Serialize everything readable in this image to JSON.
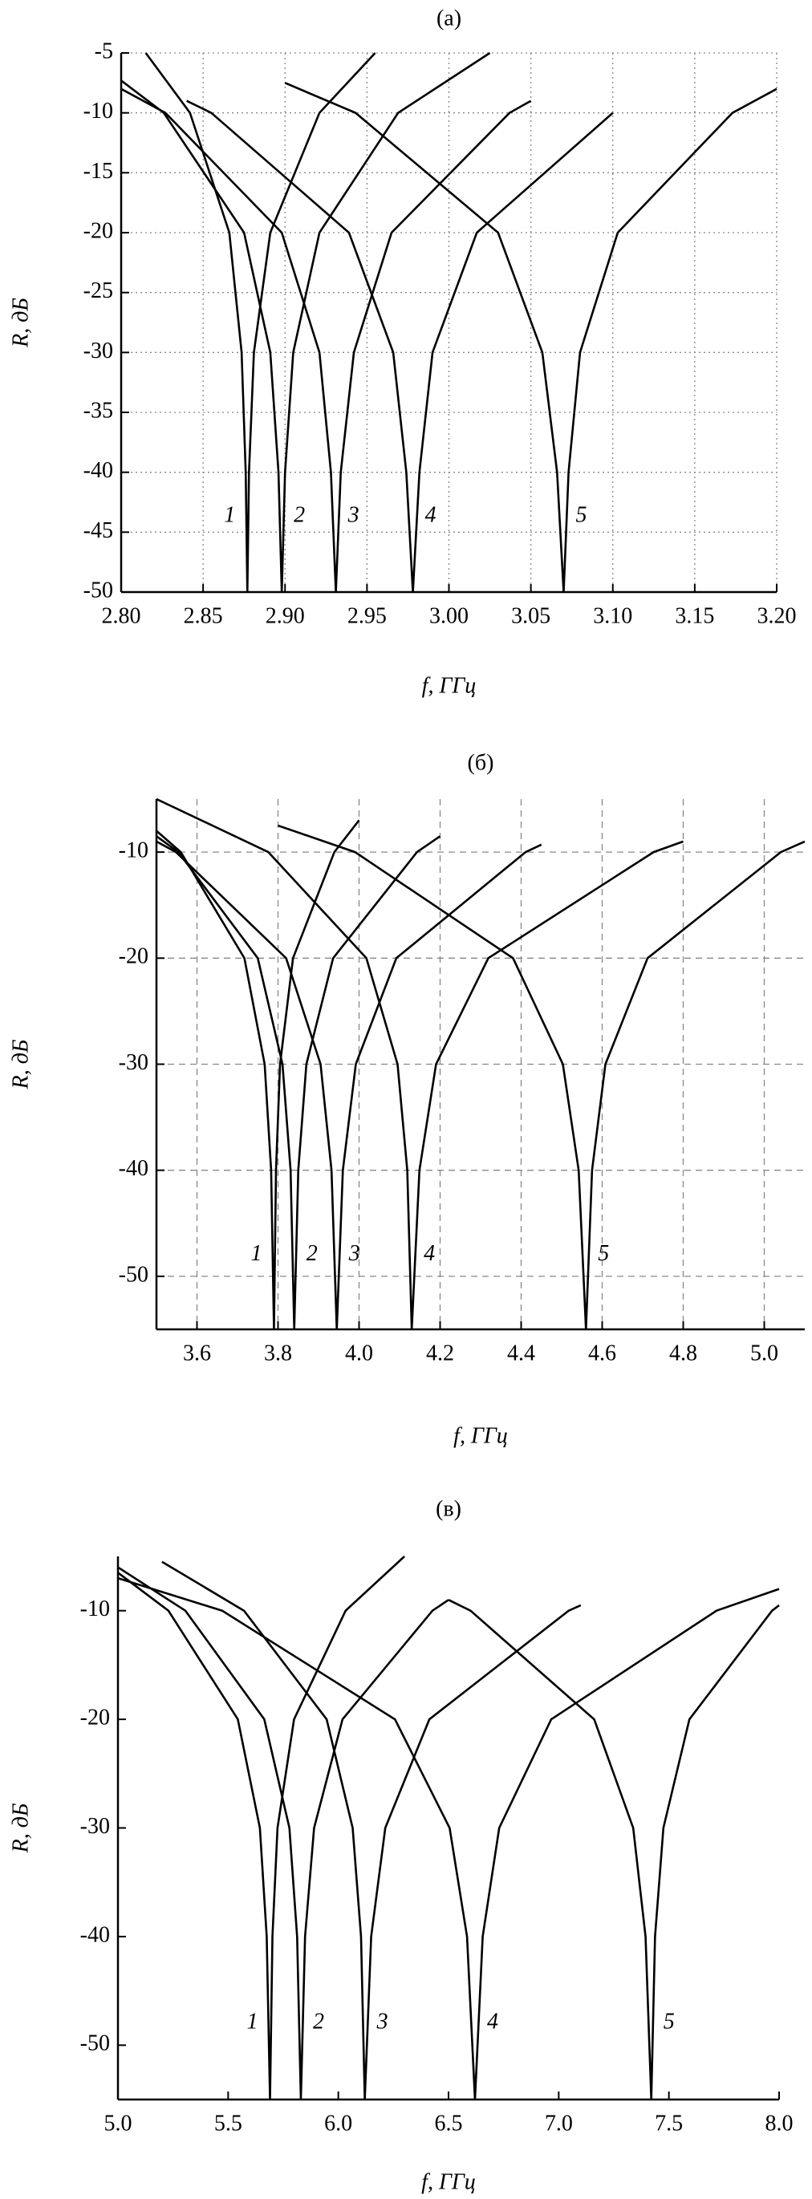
{
  "chart_data": [
    {
      "type": "line",
      "title": "(a)",
      "xlabel": "f,  ГГц",
      "ylabel": "R, дБ",
      "xlim": [
        2.8,
        3.2
      ],
      "ylim": [
        -50,
        -5
      ],
      "xticks": [
        {
          "value": 2.8,
          "label": "2.80"
        },
        2.85,
        {
          "value": 2.9,
          "label": "2.90"
        },
        2.95,
        {
          "value": 3.0,
          "label": "3.00"
        },
        3.05,
        {
          "value": 3.1,
          "label": "3.10"
        },
        3.15,
        {
          "value": 3.2,
          "label": "3.20"
        }
      ],
      "yticks": [
        -5,
        -10,
        -15,
        -20,
        -25,
        -30,
        -35,
        -40,
        -45,
        -50
      ],
      "grid": true,
      "grid_dash": "dotted",
      "series": [
        {
          "name": "1",
          "color": "#000000",
          "x": [
            2.815,
            2.842,
            2.866,
            2.8735,
            2.876,
            2.877,
            2.878,
            2.881,
            2.891,
            2.921,
            2.955
          ],
          "values": [
            -5,
            -10,
            -20,
            -30,
            -40,
            -50,
            -40,
            -30,
            -20,
            -10,
            -5
          ]
        },
        {
          "name": "2",
          "color": "#000000",
          "x": [
            2.8,
            2.826,
            2.875,
            2.891,
            2.896,
            2.898,
            2.9,
            2.905,
            2.921,
            2.969,
            3.025
          ],
          "values": [
            -7.3,
            -10,
            -20,
            -30,
            -40,
            -50,
            -40,
            -30,
            -20,
            -10,
            -5
          ]
        },
        {
          "name": "3",
          "color": "#000000",
          "x": [
            2.8,
            2.827,
            2.898,
            2.921,
            2.928,
            2.931,
            2.934,
            2.942,
            2.965,
            3.037,
            3.05
          ],
          "values": [
            -8,
            -10,
            -20,
            -30,
            -40,
            -50,
            -40,
            -30,
            -20,
            -10,
            -9
          ]
        },
        {
          "name": "4",
          "color": "#000000",
          "x": [
            2.84,
            2.855,
            2.939,
            2.966,
            2.974,
            2.978,
            2.982,
            2.99,
            3.017,
            3.1
          ],
          "values": [
            -9,
            -10,
            -20,
            -30,
            -40,
            -50,
            -40,
            -30,
            -20,
            -10
          ]
        },
        {
          "name": "5",
          "color": "#000000",
          "x": [
            2.9,
            2.943,
            3.03,
            3.057,
            3.066,
            3.07,
            3.073,
            3.08,
            3.103,
            3.173,
            3.2
          ],
          "values": [
            -7.5,
            -10,
            -20,
            -30,
            -40,
            -50,
            -40,
            -30,
            -20,
            -10,
            -8
          ]
        }
      ]
    },
    {
      "type": "line",
      "title": "(б)",
      "xlabel": "f,  ГГц",
      "ylabel": "R,  дБ",
      "xlim": [
        3.5,
        5.1
      ],
      "ylim": [
        -55,
        -5
      ],
      "xticks": [
        3.6,
        3.8,
        {
          "value": 4.0,
          "label": "4.0"
        },
        4.2,
        4.4,
        4.6,
        4.8,
        {
          "value": 5.0,
          "label": "5.0"
        }
      ],
      "yticks": [
        -10,
        -20,
        -30,
        -40,
        -50
      ],
      "grid": true,
      "grid_dash": "dashed",
      "series": [
        {
          "name": "1",
          "color": "#000000",
          "x": [
            3.5,
            3.56,
            3.717,
            3.767,
            3.783,
            3.79,
            3.795,
            3.805,
            3.837,
            3.939,
            4.0
          ],
          "values": [
            -8,
            -10,
            -20,
            -30,
            -40,
            -55,
            -40,
            -30,
            -20,
            -10,
            -7
          ]
        },
        {
          "name": "2",
          "color": "#000000",
          "x": [
            3.5,
            3.554,
            3.75,
            3.811,
            3.831,
            3.84,
            3.85,
            3.87,
            3.936,
            4.143,
            4.2
          ],
          "values": [
            -8.5,
            -10,
            -20,
            -30,
            -40,
            -55,
            -40,
            -30,
            -20,
            -10,
            -8.5
          ]
        },
        {
          "name": "3",
          "color": "#000000",
          "x": [
            3.5,
            3.548,
            3.82,
            3.905,
            3.932,
            3.945,
            3.96,
            3.992,
            4.092,
            4.411,
            4.45
          ],
          "values": [
            -9,
            -10,
            -20,
            -30,
            -40,
            -55,
            -40,
            -30,
            -20,
            -10,
            -9.3
          ]
        },
        {
          "name": "4",
          "color": "#000000",
          "x": [
            3.5,
            3.776,
            4.018,
            4.095,
            4.119,
            4.13,
            4.149,
            4.19,
            4.319,
            4.727,
            4.8
          ],
          "values": [
            -5,
            -10,
            -20,
            -30,
            -40,
            -55,
            -40,
            -30,
            -20,
            -10,
            -9
          ]
        },
        {
          "name": "5",
          "color": "#000000",
          "x": [
            3.8,
            3.99,
            4.38,
            4.503,
            4.542,
            4.56,
            4.575,
            4.608,
            4.712,
            5.041,
            5.1
          ],
          "values": [
            -7.5,
            -10,
            -20,
            -30,
            -40,
            -55,
            -40,
            -30,
            -20,
            -10,
            -9
          ]
        }
      ]
    },
    {
      "type": "line",
      "title": "(в)",
      "xlabel": "f, ГГц",
      "ylabel": "R, дБ",
      "xlim": [
        5.0,
        8.0
      ],
      "ylim": [
        -55,
        -5
      ],
      "xticks": [
        {
          "value": 5.0,
          "label": "5.0"
        },
        5.5,
        {
          "value": 6.0,
          "label": "6.0"
        },
        6.5,
        {
          "value": 7.0,
          "label": "7.0"
        },
        7.5,
        {
          "value": 8.0,
          "label": "8.0"
        }
      ],
      "yticks": [
        -10,
        -20,
        -30,
        -40,
        -50
      ],
      "grid": false,
      "series": [
        {
          "name": "1",
          "color": "#000000",
          "x": [
            5.0,
            5.229,
            5.544,
            5.644,
            5.675,
            5.69,
            5.701,
            5.724,
            5.799,
            6.033,
            6.3
          ],
          "values": [
            -6.5,
            -10,
            -20,
            -30,
            -40,
            -55,
            -40,
            -30,
            -20,
            -10,
            -5
          ]
        },
        {
          "name": "2",
          "color": "#000000",
          "x": [
            5.0,
            5.306,
            5.664,
            5.778,
            5.813,
            5.83,
            5.849,
            5.89,
            6.019,
            6.427,
            6.5
          ],
          "values": [
            -6,
            -10,
            -20,
            -30,
            -40,
            -55,
            -40,
            -30,
            -20,
            -10,
            -9
          ]
        },
        {
          "name": "3",
          "color": "#000000",
          "x": [
            5.2,
            5.572,
            5.947,
            6.065,
            6.103,
            6.12,
            6.149,
            6.213,
            6.413,
            7.045,
            7.1
          ],
          "values": [
            -5.5,
            -10,
            -20,
            -30,
            -40,
            -55,
            -40,
            -30,
            -20,
            -10,
            -9.5
          ]
        },
        {
          "name": "4",
          "color": "#000000",
          "x": [
            5.0,
            5.473,
            6.257,
            6.505,
            6.584,
            6.62,
            6.655,
            6.73,
            6.966,
            7.716,
            8.0
          ],
          "values": [
            -7,
            -10,
            -20,
            -30,
            -40,
            -55,
            -40,
            -30,
            -20,
            -10,
            -8
          ]
        },
        {
          "name": "5",
          "color": "#000000",
          "x": [
            6.5,
            6.6,
            7.161,
            7.338,
            7.394,
            7.42,
            7.437,
            7.475,
            7.593,
            7.968,
            8.0
          ],
          "values": [
            -9,
            -10,
            -20,
            -30,
            -40,
            -55,
            -40,
            -30,
            -20,
            -10,
            -9.5
          ]
        }
      ]
    }
  ]
}
